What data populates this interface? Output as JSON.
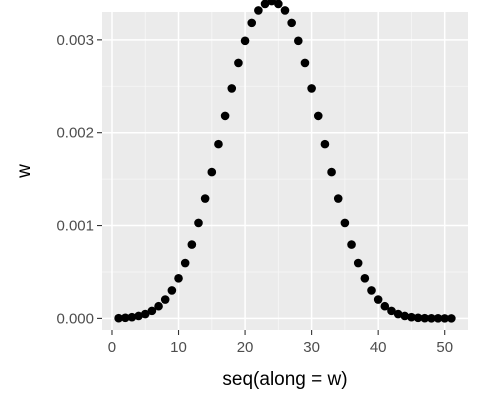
{
  "chart_data": {
    "type": "scatter",
    "xlabel": "seq(along = w)",
    "ylabel": "w",
    "xlim": [
      -1.5,
      53.5
    ],
    "ylim": [
      -0.000125,
      0.0033
    ],
    "xticks": [
      0,
      10,
      20,
      30,
      40,
      50
    ],
    "xtick_labels": [
      "0",
      "10",
      "20",
      "30",
      "40",
      "50"
    ],
    "yticks": [
      0.0,
      0.001,
      0.002,
      0.003
    ],
    "ytick_labels": [
      "0.000",
      "0.001",
      "0.002",
      "0.003"
    ],
    "grid": true,
    "legend": "none",
    "panel_color": "#ebebeb",
    "point_color": "#000000",
    "series": [
      {
        "x": [
          1,
          2,
          3,
          4,
          5,
          6,
          7,
          8,
          9,
          10,
          11,
          12,
          13,
          14,
          15,
          16,
          17,
          18,
          19,
          20,
          21,
          22,
          23,
          24,
          25,
          26,
          27,
          28,
          29,
          30,
          31,
          32,
          33,
          34,
          35,
          36,
          37,
          38,
          39,
          40,
          41,
          42,
          43,
          44,
          45,
          46,
          47,
          48,
          49,
          50,
          51
        ],
        "y": [
          2e-06,
          6e-06,
          1.3e-05,
          2.6e-05,
          4.7e-05,
          8.1e-05,
          0.000131,
          0.000203,
          0.000301,
          0.000432,
          0.000596,
          0.000795,
          0.001028,
          0.001291,
          0.001576,
          0.001877,
          0.002181,
          0.002477,
          0.002751,
          0.00299,
          0.003183,
          0.003317,
          0.003387,
          0.003417,
          0.003387,
          0.003317,
          0.003183,
          0.00299,
          0.002751,
          0.002477,
          0.002181,
          0.001877,
          0.001576,
          0.001291,
          0.001028,
          0.000795,
          0.000596,
          0.000432,
          0.000301,
          0.000203,
          0.000131,
          8.1e-05,
          4.7e-05,
          2.6e-05,
          1.3e-05,
          6e-06,
          2e-06,
          1e-06,
          5e-07,
          2e-07,
          1e-07
        ]
      }
    ]
  }
}
